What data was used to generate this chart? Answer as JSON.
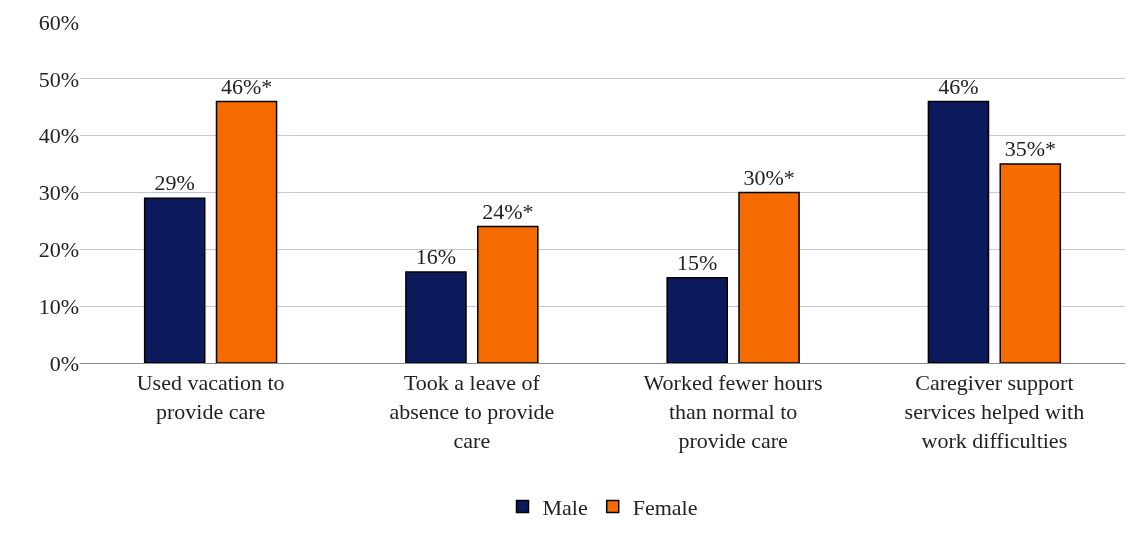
{
  "chart_data": {
    "type": "bar",
    "categories": [
      "Used vacation to provide care",
      "Took a leave of absence to provide care",
      "Worked fewer hours than normal to provide care",
      "Caregiver support services helped with work difficulties"
    ],
    "series": [
      {
        "name": "Male",
        "color": "#0c1a5b",
        "values": [
          29,
          16,
          15,
          46
        ],
        "value_labels": [
          "29%",
          "16%",
          "15%",
          "46%"
        ]
      },
      {
        "name": "Female",
        "color": "#f56b00",
        "values": [
          46,
          24,
          30,
          35
        ],
        "value_labels": [
          "46%*",
          "24%*",
          "30%*",
          "35%*"
        ]
      }
    ],
    "ylim": [
      0,
      60
    ],
    "yticks": [
      {
        "value": 0,
        "label": "0%"
      },
      {
        "value": 10,
        "label": "10%"
      },
      {
        "value": 20,
        "label": "20%"
      },
      {
        "value": 30,
        "label": "30%"
      },
      {
        "value": 40,
        "label": "40%"
      },
      {
        "value": 50,
        "label": "50%"
      },
      {
        "value": 60,
        "label": "60%"
      }
    ],
    "grid": "y",
    "legend": "bottom"
  }
}
